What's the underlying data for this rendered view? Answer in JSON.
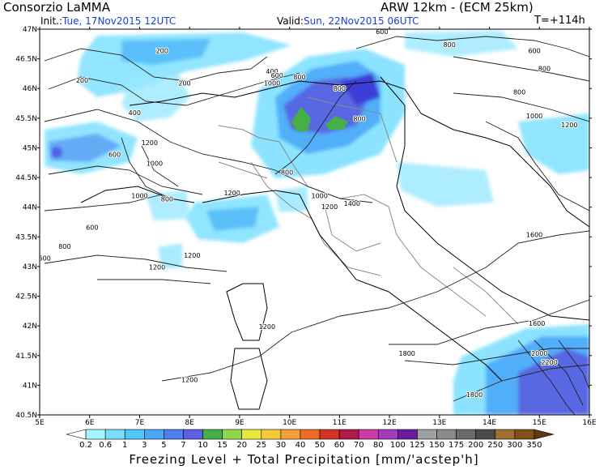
{
  "header": {
    "title_left": "Consorzio LaMMA",
    "title_right": "ARW 12km - (ECM 25km)",
    "init_label": "Init.:",
    "init_value": "Tue, 17Nov2015 12UTC",
    "valid_label": "Valid:",
    "valid_value": "Sun, 22Nov2015 06UTC",
    "timestep": "T=+114h"
  },
  "axes": {
    "lon_ticks": [
      "5E",
      "6E",
      "7E",
      "8E",
      "9E",
      "10E",
      "11E",
      "12E",
      "13E",
      "14E",
      "15E",
      "16E"
    ],
    "lat_ticks": [
      "47N",
      "46.5N",
      "46N",
      "45.5N",
      "45N",
      "44.5N",
      "44N",
      "43.5N",
      "43N",
      "42.5N",
      "42N",
      "41.5N",
      "41N",
      "40.5N"
    ]
  },
  "contour_labels": [
    {
      "text": "200",
      "lon": 7.45,
      "lat": 46.6
    },
    {
      "text": "200",
      "lon": 5.85,
      "lat": 46.1
    },
    {
      "text": "200",
      "lon": 7.9,
      "lat": 46.05
    },
    {
      "text": "400",
      "lon": 9.65,
      "lat": 46.25
    },
    {
      "text": "600",
      "lon": 9.75,
      "lat": 46.18
    },
    {
      "text": "800",
      "lon": 10.2,
      "lat": 46.15
    },
    {
      "text": "1000",
      "lon": 9.65,
      "lat": 46.05
    },
    {
      "text": "600",
      "lon": 11.85,
      "lat": 46.92
    },
    {
      "text": "800",
      "lon": 11.0,
      "lat": 45.96
    },
    {
      "text": "800",
      "lon": 11.4,
      "lat": 45.45
    },
    {
      "text": "800",
      "lon": 13.2,
      "lat": 46.7
    },
    {
      "text": "600",
      "lon": 14.9,
      "lat": 46.6
    },
    {
      "text": "800",
      "lon": 15.1,
      "lat": 46.3
    },
    {
      "text": "800",
      "lon": 14.6,
      "lat": 45.9
    },
    {
      "text": "1000",
      "lon": 14.9,
      "lat": 45.5
    },
    {
      "text": "1200",
      "lon": 15.6,
      "lat": 45.35
    },
    {
      "text": "400",
      "lon": 6.9,
      "lat": 45.55
    },
    {
      "text": "1200",
      "lon": 7.2,
      "lat": 45.05
    },
    {
      "text": "600",
      "lon": 6.5,
      "lat": 44.85
    },
    {
      "text": "1000",
      "lon": 7.3,
      "lat": 44.7
    },
    {
      "text": "1000",
      "lon": 7.0,
      "lat": 44.15
    },
    {
      "text": "800",
      "lon": 7.55,
      "lat": 44.1
    },
    {
      "text": "1200",
      "lon": 8.85,
      "lat": 44.2
    },
    {
      "text": "800",
      "lon": 9.95,
      "lat": 44.55
    },
    {
      "text": "1000",
      "lon": 10.6,
      "lat": 44.15
    },
    {
      "text": "1200",
      "lon": 10.8,
      "lat": 43.97
    },
    {
      "text": "1400",
      "lon": 11.25,
      "lat": 44.02
    },
    {
      "text": "600",
      "lon": 6.05,
      "lat": 43.62
    },
    {
      "text": "800",
      "lon": 5.5,
      "lat": 43.3
    },
    {
      "text": "600",
      "lon": 5.1,
      "lat": 43.1
    },
    {
      "text": "1200",
      "lon": 8.05,
      "lat": 43.15
    },
    {
      "text": "1200",
      "lon": 7.35,
      "lat": 42.95
    },
    {
      "text": "1600",
      "lon": 14.9,
      "lat": 43.5
    },
    {
      "text": "1600",
      "lon": 14.95,
      "lat": 42.0
    },
    {
      "text": "1800",
      "lon": 12.35,
      "lat": 41.5
    },
    {
      "text": "2000",
      "lon": 15.0,
      "lat": 41.5
    },
    {
      "text": "2200",
      "lon": 15.2,
      "lat": 41.35
    },
    {
      "text": "1800",
      "lon": 13.7,
      "lat": 40.8
    },
    {
      "text": "1200",
      "lon": 8.0,
      "lat": 41.05
    },
    {
      "text": "1200",
      "lon": 9.55,
      "lat": 41.95
    }
  ],
  "legend": {
    "values": [
      "0.2",
      "0.6",
      "1",
      "3",
      "5",
      "7",
      "10",
      "15",
      "20",
      "25",
      "30",
      "40",
      "50",
      "60",
      "70",
      "80",
      "100",
      "125",
      "150",
      "175",
      "200",
      "250",
      "300",
      "350"
    ],
    "colors": [
      "#a8f4ff",
      "#78dcff",
      "#50c6ff",
      "#4aa8f8",
      "#5080f0",
      "#5a60e0",
      "#44b046",
      "#8cd848",
      "#eaea38",
      "#f4c838",
      "#f4a038",
      "#ec6c28",
      "#d43426",
      "#b01a4a",
      "#cc3aa8",
      "#a03ab8",
      "#6a1ca0",
      "#a0a0a0",
      "#8a8a8a",
      "#6a6a6a",
      "#4a4a4a",
      "#a07030",
      "#805018",
      "#5a3a10"
    ],
    "colors_note": ""
  },
  "footer": {
    "caption": "Freezing Level + Total Precipitation [mm/'acstep'h]"
  }
}
